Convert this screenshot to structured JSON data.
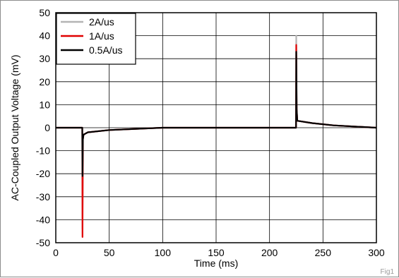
{
  "figure_tag": "Fig1",
  "chart_data": {
    "type": "line",
    "title": "",
    "xlabel": "Time (ms)",
    "ylabel": "AC-Coupled Output Voltage (mV)",
    "xlim": [
      0,
      300
    ],
    "ylim": [
      -50,
      50
    ],
    "x_ticks": [
      0,
      50,
      100,
      150,
      200,
      250,
      300
    ],
    "y_ticks": [
      50,
      40,
      30,
      20,
      10,
      0,
      -10,
      -20,
      -30,
      -40,
      -50
    ],
    "grid": true,
    "legend_position": "top-left",
    "series": [
      {
        "name": "2A/us",
        "color": "#b4b4b4",
        "x": [
          0,
          24.8,
          25,
          25.4,
          26,
          30,
          50,
          100,
          150,
          200,
          224.8,
          225,
          225.4,
          226,
          240,
          260,
          300
        ],
        "y": [
          0,
          0,
          -44,
          -5,
          -3,
          -2,
          -1,
          0,
          0,
          0,
          0,
          40,
          8,
          3,
          2,
          1,
          0
        ]
      },
      {
        "name": "1A/us",
        "color": "#e00000",
        "x": [
          0,
          24.8,
          25,
          25.4,
          26,
          30,
          50,
          100,
          150,
          200,
          224.8,
          225,
          225.4,
          226,
          240,
          260,
          300
        ],
        "y": [
          0,
          0,
          -47.5,
          -5,
          -3,
          -2,
          -1,
          0,
          0,
          0,
          0,
          36,
          8,
          3,
          2,
          1,
          0
        ]
      },
      {
        "name": "0.5A/us",
        "color": "#000000",
        "x": [
          0,
          24.8,
          25,
          25.4,
          26,
          30,
          50,
          100,
          150,
          200,
          224.8,
          225,
          225.4,
          226,
          240,
          260,
          300
        ],
        "y": [
          0,
          0,
          -21,
          -5,
          -3,
          -2,
          -1,
          0,
          0,
          0,
          0,
          33,
          8,
          3,
          2,
          1,
          0
        ]
      }
    ]
  }
}
